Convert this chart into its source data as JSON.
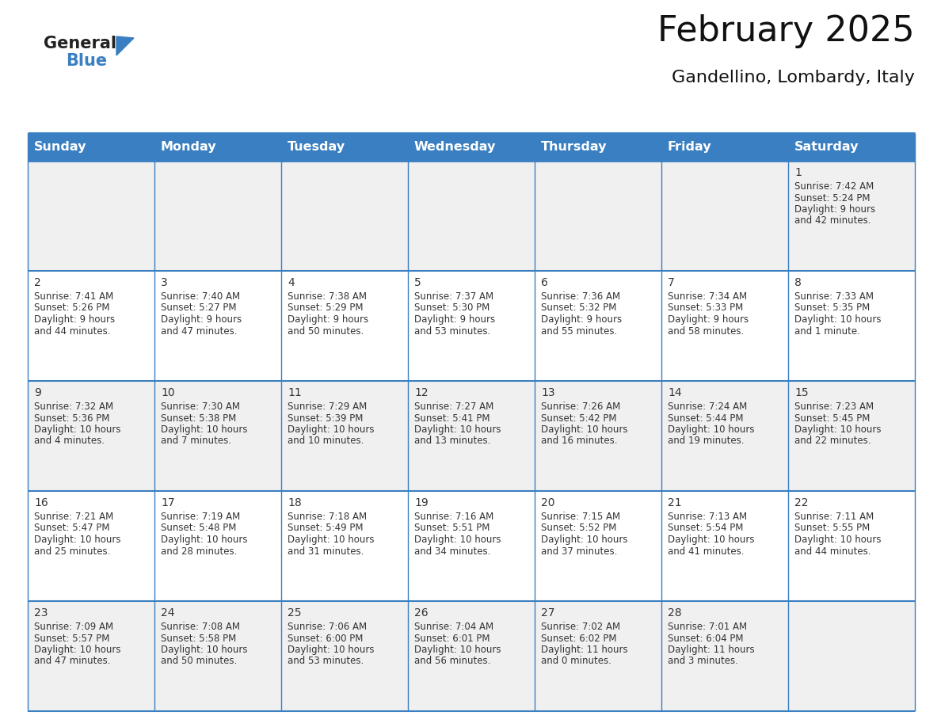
{
  "title": "February 2025",
  "subtitle": "Gandellino, Lombardy, Italy",
  "header_bg_color": "#3a7fc1",
  "header_text_color": "#ffffff",
  "cell_bg_even": "#f0f0f0",
  "cell_bg_odd": "#ffffff",
  "border_color": "#3a7fc1",
  "day_headers": [
    "Sunday",
    "Monday",
    "Tuesday",
    "Wednesday",
    "Thursday",
    "Friday",
    "Saturday"
  ],
  "title_fontsize": 32,
  "subtitle_fontsize": 16,
  "header_fontsize": 11.5,
  "cell_date_fontsize": 10,
  "cell_info_fontsize": 8.5,
  "days": [
    {
      "date": 1,
      "col": 6,
      "row": 0,
      "sunrise": "7:42 AM",
      "sunset": "5:24 PM",
      "dl1": "9 hours",
      "dl2": "and 42 minutes."
    },
    {
      "date": 2,
      "col": 0,
      "row": 1,
      "sunrise": "7:41 AM",
      "sunset": "5:26 PM",
      "dl1": "9 hours",
      "dl2": "and 44 minutes."
    },
    {
      "date": 3,
      "col": 1,
      "row": 1,
      "sunrise": "7:40 AM",
      "sunset": "5:27 PM",
      "dl1": "9 hours",
      "dl2": "and 47 minutes."
    },
    {
      "date": 4,
      "col": 2,
      "row": 1,
      "sunrise": "7:38 AM",
      "sunset": "5:29 PM",
      "dl1": "9 hours",
      "dl2": "and 50 minutes."
    },
    {
      "date": 5,
      "col": 3,
      "row": 1,
      "sunrise": "7:37 AM",
      "sunset": "5:30 PM",
      "dl1": "9 hours",
      "dl2": "and 53 minutes."
    },
    {
      "date": 6,
      "col": 4,
      "row": 1,
      "sunrise": "7:36 AM",
      "sunset": "5:32 PM",
      "dl1": "9 hours",
      "dl2": "and 55 minutes."
    },
    {
      "date": 7,
      "col": 5,
      "row": 1,
      "sunrise": "7:34 AM",
      "sunset": "5:33 PM",
      "dl1": "9 hours",
      "dl2": "and 58 minutes."
    },
    {
      "date": 8,
      "col": 6,
      "row": 1,
      "sunrise": "7:33 AM",
      "sunset": "5:35 PM",
      "dl1": "10 hours",
      "dl2": "and 1 minute."
    },
    {
      "date": 9,
      "col": 0,
      "row": 2,
      "sunrise": "7:32 AM",
      "sunset": "5:36 PM",
      "dl1": "10 hours",
      "dl2": "and 4 minutes."
    },
    {
      "date": 10,
      "col": 1,
      "row": 2,
      "sunrise": "7:30 AM",
      "sunset": "5:38 PM",
      "dl1": "10 hours",
      "dl2": "and 7 minutes."
    },
    {
      "date": 11,
      "col": 2,
      "row": 2,
      "sunrise": "7:29 AM",
      "sunset": "5:39 PM",
      "dl1": "10 hours",
      "dl2": "and 10 minutes."
    },
    {
      "date": 12,
      "col": 3,
      "row": 2,
      "sunrise": "7:27 AM",
      "sunset": "5:41 PM",
      "dl1": "10 hours",
      "dl2": "and 13 minutes."
    },
    {
      "date": 13,
      "col": 4,
      "row": 2,
      "sunrise": "7:26 AM",
      "sunset": "5:42 PM",
      "dl1": "10 hours",
      "dl2": "and 16 minutes."
    },
    {
      "date": 14,
      "col": 5,
      "row": 2,
      "sunrise": "7:24 AM",
      "sunset": "5:44 PM",
      "dl1": "10 hours",
      "dl2": "and 19 minutes."
    },
    {
      "date": 15,
      "col": 6,
      "row": 2,
      "sunrise": "7:23 AM",
      "sunset": "5:45 PM",
      "dl1": "10 hours",
      "dl2": "and 22 minutes."
    },
    {
      "date": 16,
      "col": 0,
      "row": 3,
      "sunrise": "7:21 AM",
      "sunset": "5:47 PM",
      "dl1": "10 hours",
      "dl2": "and 25 minutes."
    },
    {
      "date": 17,
      "col": 1,
      "row": 3,
      "sunrise": "7:19 AM",
      "sunset": "5:48 PM",
      "dl1": "10 hours",
      "dl2": "and 28 minutes."
    },
    {
      "date": 18,
      "col": 2,
      "row": 3,
      "sunrise": "7:18 AM",
      "sunset": "5:49 PM",
      "dl1": "10 hours",
      "dl2": "and 31 minutes."
    },
    {
      "date": 19,
      "col": 3,
      "row": 3,
      "sunrise": "7:16 AM",
      "sunset": "5:51 PM",
      "dl1": "10 hours",
      "dl2": "and 34 minutes."
    },
    {
      "date": 20,
      "col": 4,
      "row": 3,
      "sunrise": "7:15 AM",
      "sunset": "5:52 PM",
      "dl1": "10 hours",
      "dl2": "and 37 minutes."
    },
    {
      "date": 21,
      "col": 5,
      "row": 3,
      "sunrise": "7:13 AM",
      "sunset": "5:54 PM",
      "dl1": "10 hours",
      "dl2": "and 41 minutes."
    },
    {
      "date": 22,
      "col": 6,
      "row": 3,
      "sunrise": "7:11 AM",
      "sunset": "5:55 PM",
      "dl1": "10 hours",
      "dl2": "and 44 minutes."
    },
    {
      "date": 23,
      "col": 0,
      "row": 4,
      "sunrise": "7:09 AM",
      "sunset": "5:57 PM",
      "dl1": "10 hours",
      "dl2": "and 47 minutes."
    },
    {
      "date": 24,
      "col": 1,
      "row": 4,
      "sunrise": "7:08 AM",
      "sunset": "5:58 PM",
      "dl1": "10 hours",
      "dl2": "and 50 minutes."
    },
    {
      "date": 25,
      "col": 2,
      "row": 4,
      "sunrise": "7:06 AM",
      "sunset": "6:00 PM",
      "dl1": "10 hours",
      "dl2": "and 53 minutes."
    },
    {
      "date": 26,
      "col": 3,
      "row": 4,
      "sunrise": "7:04 AM",
      "sunset": "6:01 PM",
      "dl1": "10 hours",
      "dl2": "and 56 minutes."
    },
    {
      "date": 27,
      "col": 4,
      "row": 4,
      "sunrise": "7:02 AM",
      "sunset": "6:02 PM",
      "dl1": "11 hours",
      "dl2": "and 0 minutes."
    },
    {
      "date": 28,
      "col": 5,
      "row": 4,
      "sunrise": "7:01 AM",
      "sunset": "6:04 PM",
      "dl1": "11 hours",
      "dl2": "and 3 minutes."
    }
  ],
  "num_rows": 5,
  "num_cols": 7,
  "logo_text1": "General",
  "logo_text2": "Blue",
  "logo_text_color1": "#222222",
  "logo_text_color2": "#3a7fc1",
  "logo_triangle_color": "#3a7fc1"
}
